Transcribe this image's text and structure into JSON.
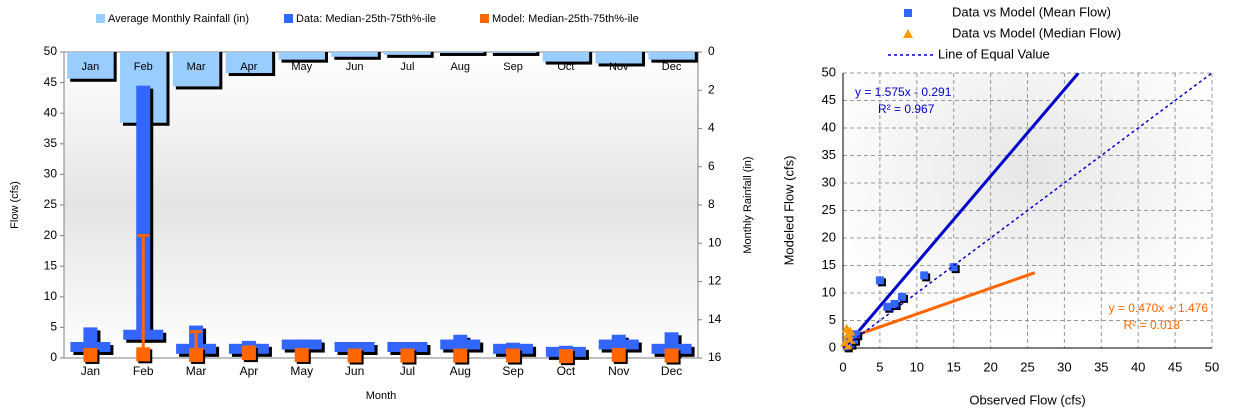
{
  "chart_data": [
    {
      "type": "box",
      "x_label": "Month",
      "y_label": "Flow (cfs)",
      "y2_label": "Monthly Rainfall (in)",
      "categories": [
        "Jan",
        "Feb",
        "Mar",
        "Apr",
        "May",
        "Jun",
        "Jul",
        "Aug",
        "Sep",
        "Oct",
        "Nov",
        "Dec"
      ],
      "ylim": [
        0,
        50
      ],
      "yticks": [
        0,
        5,
        10,
        15,
        20,
        25,
        30,
        35,
        40,
        45,
        50
      ],
      "y2lim": [
        0,
        16
      ],
      "y2ticks": [
        0,
        2,
        4,
        6,
        8,
        10,
        12,
        14,
        16
      ],
      "y2_inverted": true,
      "grid": false,
      "rainfall": {
        "name": "Average Monthly Rainfall (in)",
        "color": "#99ccff",
        "axis": "y2",
        "values": [
          1.4,
          3.7,
          1.8,
          1.1,
          0.4,
          0.25,
          0.15,
          0.05,
          0.05,
          0.5,
          0.6,
          0.4
        ]
      },
      "series": [
        {
          "name": "Data: Median-25th-75th%-ile",
          "color": "#3366ff",
          "median": [
            1.8,
            3.8,
            1.5,
            1.5,
            2.2,
            1.8,
            1.8,
            2.2,
            1.5,
            1.0,
            2.2,
            1.5
          ],
          "p25": [
            1.0,
            3.0,
            0.8,
            0.8,
            1.5,
            1.2,
            1.2,
            1.5,
            0.8,
            0.3,
            1.5,
            0.5
          ],
          "p75": [
            5.0,
            44.5,
            5.3,
            2.8,
            3.0,
            2.5,
            2.3,
            3.8,
            2.5,
            2.0,
            3.8,
            4.2
          ]
        },
        {
          "name": "Model: Median-25th-75th%-ile",
          "color": "#ff6600",
          "median": [
            0.5,
            0.6,
            0.5,
            0.8,
            0.5,
            0.4,
            0.4,
            0.4,
            0.4,
            0.3,
            0.5,
            0.4
          ],
          "p25": [
            0.1,
            0.2,
            0.1,
            0.2,
            0.1,
            0.1,
            0.1,
            0.1,
            0.1,
            0.1,
            0.1,
            0.1
          ],
          "p75": [
            1.2,
            20.0,
            4.3,
            1.8,
            1.0,
            0.9,
            0.9,
            1.0,
            0.9,
            0.8,
            1.2,
            1.0
          ]
        }
      ]
    },
    {
      "type": "scatter",
      "x_label": "Observed Flow (cfs)",
      "y_label": "Modeled Flow (cfs)",
      "xlim": [
        0,
        50
      ],
      "xticks": [
        0,
        5,
        10,
        15,
        20,
        25,
        30,
        35,
        40,
        45,
        50
      ],
      "ylim": [
        0,
        50
      ],
      "yticks": [
        0,
        5,
        10,
        15,
        20,
        25,
        30,
        35,
        40,
        45,
        50
      ],
      "grid": true,
      "series": [
        {
          "name": "Data vs Model (Mean Flow)",
          "color": "#3366ff",
          "marker": "square",
          "x": [
            0.5,
            0.8,
            1.0,
            1.2,
            1.5,
            1.8,
            5.0,
            6.0,
            7.0,
            8.0,
            11.0,
            15.0
          ],
          "y": [
            0.3,
            1.2,
            0.8,
            2.0,
            1.5,
            2.5,
            12.3,
            7.5,
            8.0,
            9.3,
            13.2,
            14.7
          ]
        },
        {
          "name": "Data vs Model (Median Flow)",
          "color": "#ff9900",
          "marker": "triangle",
          "x": [
            0.3,
            0.5,
            0.6,
            0.7,
            1.0,
            1.0
          ],
          "y": [
            1.0,
            3.5,
            0.5,
            2.5,
            1.5,
            3.0
          ]
        },
        {
          "name": "Line of Equal Value",
          "color": "#0000cc",
          "marker": "dotted-line",
          "x": [
            0,
            50
          ],
          "y": [
            0,
            50
          ]
        }
      ],
      "trendlines": [
        {
          "color": "#0000cc",
          "x": [
            0,
            31.9
          ],
          "y": [
            -0.29,
            50
          ]
        },
        {
          "color": "#ff6600",
          "x": [
            0,
            26
          ],
          "y": [
            1.48,
            13.7
          ]
        }
      ],
      "annotations": [
        {
          "text": "y = 1.575x - 0.291",
          "color": "#0000cc"
        },
        {
          "text": "R² = 0.967",
          "color": "#0000cc"
        },
        {
          "text": "y = 0.470x + 1.476",
          "color": "#ff6600"
        },
        {
          "text": "R² = 0.018",
          "color": "#ff6600"
        }
      ]
    }
  ]
}
